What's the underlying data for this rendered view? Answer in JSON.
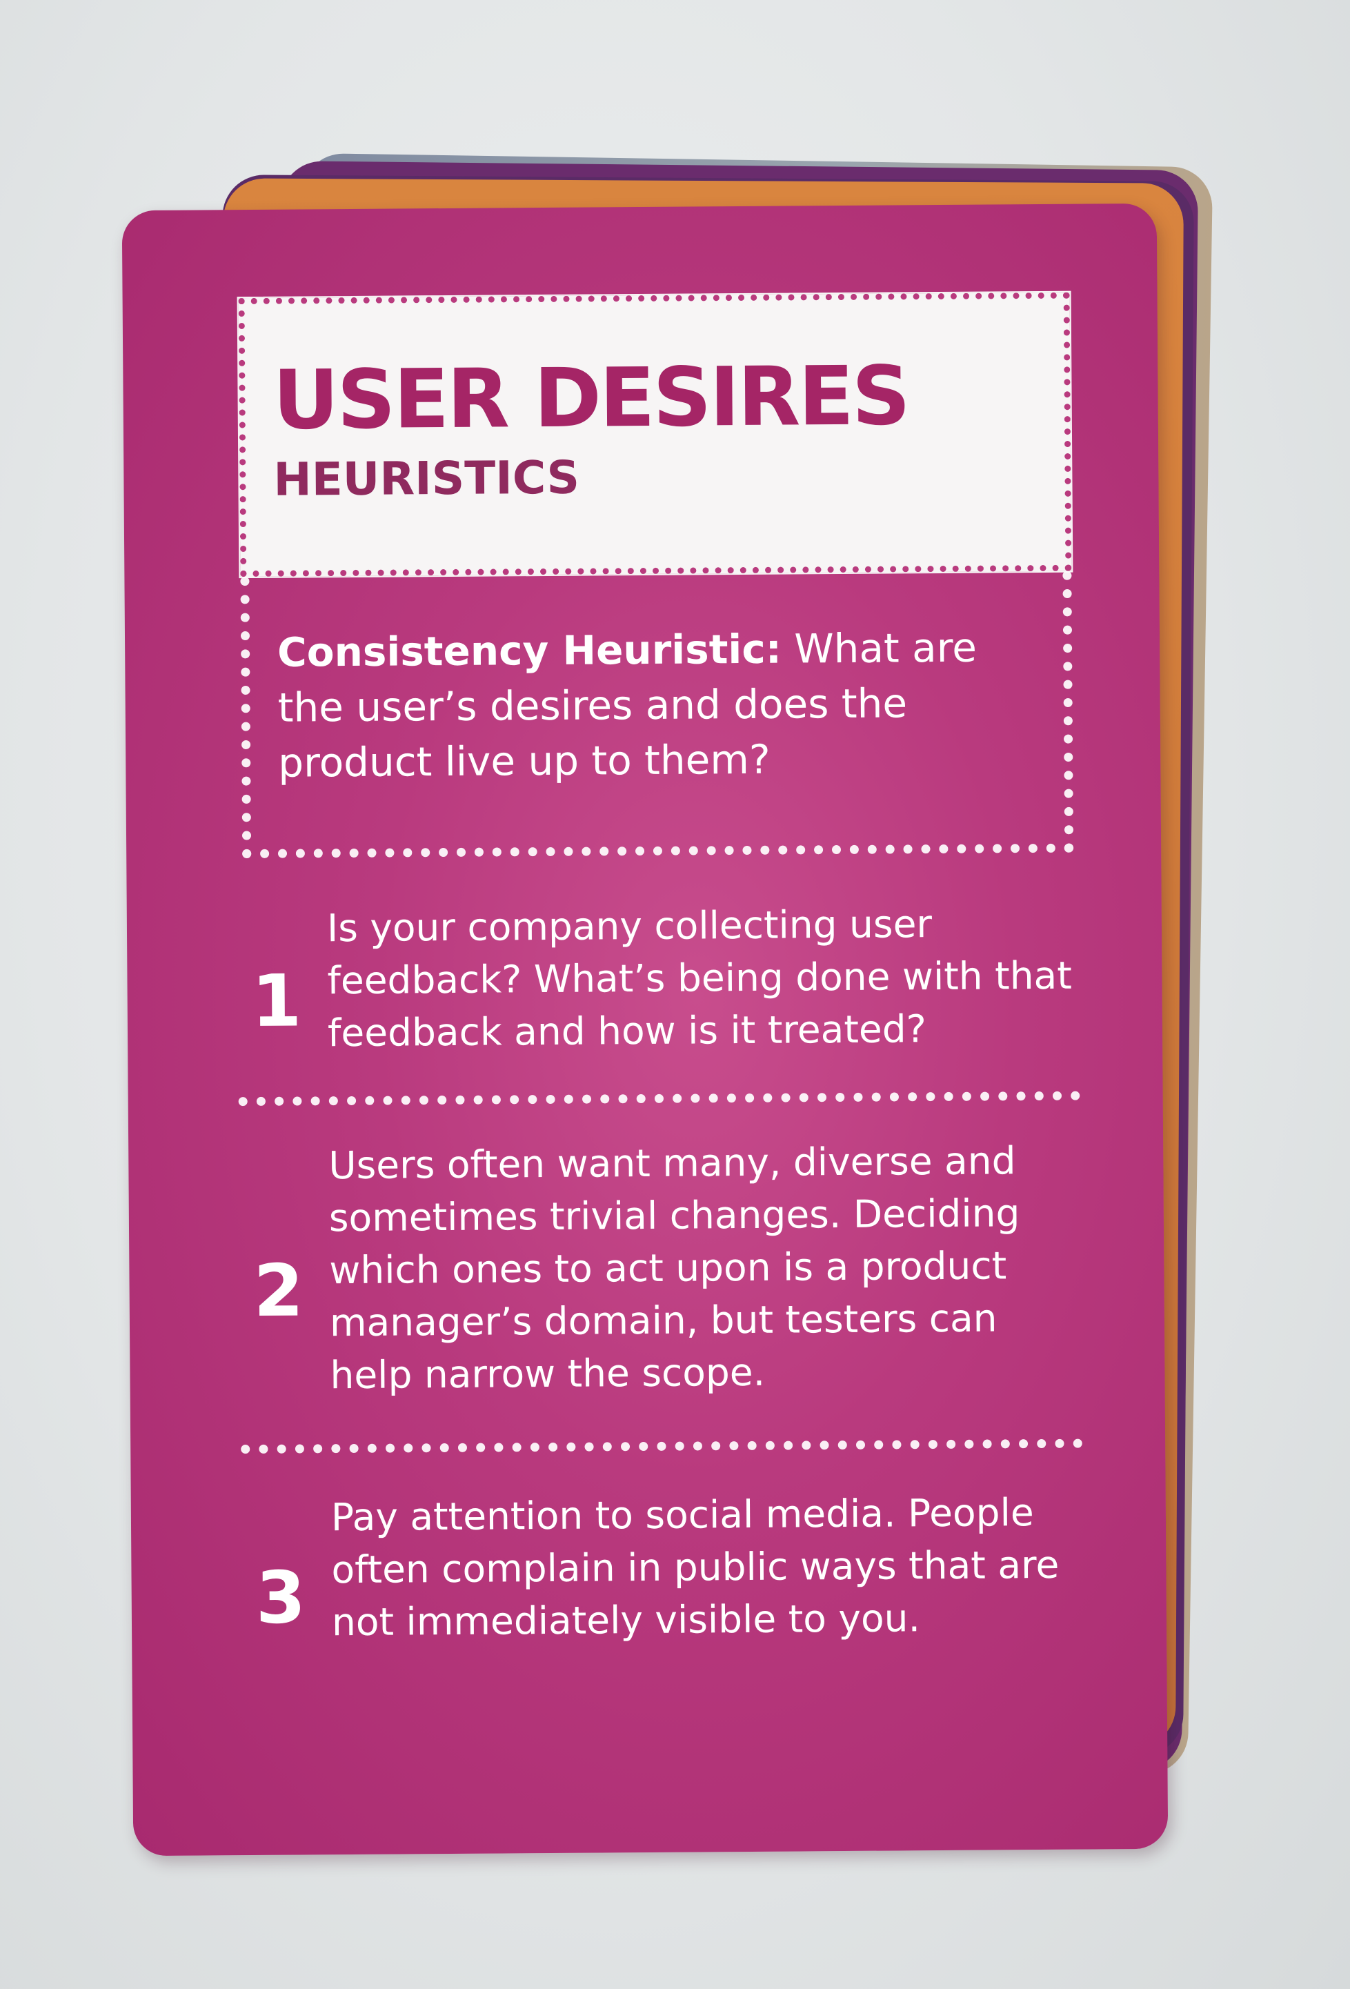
{
  "card": {
    "title": "USER DESIRES",
    "subtitle": "HEURISTICS",
    "intro": {
      "lead": "Consistency Heuristic:",
      "text": " What are the user’s desires and does the product live up to them?"
    },
    "items": [
      {
        "number": "1",
        "text": "Is your company collecting user feedback? What’s being done with that feedback and how is it treated?"
      },
      {
        "number": "2",
        "text": "Users often want many, diverse and sometimes trivial changes. Deciding which ones to act upon is a product manager’s domain, but testers can help narrow the scope."
      },
      {
        "number": "3",
        "text": "Pay attention to social media. People often complain in public ways that are not immediately visible to you."
      }
    ]
  },
  "colors": {
    "card_pink": "#b93a7e",
    "title_color": "#a52566",
    "panel_white": "#f7f5f5",
    "under_card_orange": "#d9853f",
    "under_card_purple": "#5a2b66",
    "background": "#e3e6e7"
  }
}
